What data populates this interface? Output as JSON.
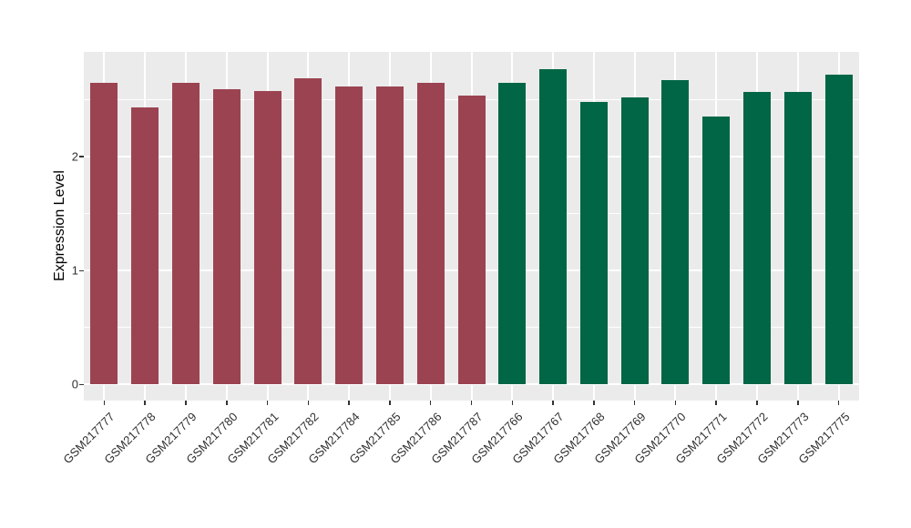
{
  "chart_data": {
    "type": "bar",
    "title": "",
    "xlabel": "",
    "ylabel": "Expression Level",
    "ylim": [
      -0.14,
      2.92
    ],
    "yticks": [
      0,
      1,
      2
    ],
    "yticks_minor": [
      0.5,
      1.5,
      2.5
    ],
    "grid": "on",
    "legend": "none",
    "panel_background": "#EBEBEB",
    "gridline_color": "#FFFFFF",
    "group_colors": {
      "groupA": "#9B4351",
      "groupB": "#006645"
    },
    "bars": [
      {
        "label": "GSM217777",
        "value": 2.65,
        "group": "groupA"
      },
      {
        "label": "GSM217778",
        "value": 2.43,
        "group": "groupA"
      },
      {
        "label": "GSM217779",
        "value": 2.65,
        "group": "groupA"
      },
      {
        "label": "GSM217780",
        "value": 2.59,
        "group": "groupA"
      },
      {
        "label": "GSM217781",
        "value": 2.58,
        "group": "groupA"
      },
      {
        "label": "GSM217782",
        "value": 2.69,
        "group": "groupA"
      },
      {
        "label": "GSM217784",
        "value": 2.62,
        "group": "groupA"
      },
      {
        "label": "GSM217785",
        "value": 2.62,
        "group": "groupA"
      },
      {
        "label": "GSM217786",
        "value": 2.65,
        "group": "groupA"
      },
      {
        "label": "GSM217787",
        "value": 2.54,
        "group": "groupA"
      },
      {
        "label": "GSM217766",
        "value": 2.65,
        "group": "groupB"
      },
      {
        "label": "GSM217767",
        "value": 2.77,
        "group": "groupB"
      },
      {
        "label": "GSM217768",
        "value": 2.48,
        "group": "groupB"
      },
      {
        "label": "GSM217769",
        "value": 2.52,
        "group": "groupB"
      },
      {
        "label": "GSM217770",
        "value": 2.67,
        "group": "groupB"
      },
      {
        "label": "GSM217771",
        "value": 2.35,
        "group": "groupB"
      },
      {
        "label": "GSM217772",
        "value": 2.57,
        "group": "groupB"
      },
      {
        "label": "GSM217773",
        "value": 2.57,
        "group": "groupB"
      },
      {
        "label": "GSM217775",
        "value": 2.72,
        "group": "groupB"
      }
    ]
  }
}
